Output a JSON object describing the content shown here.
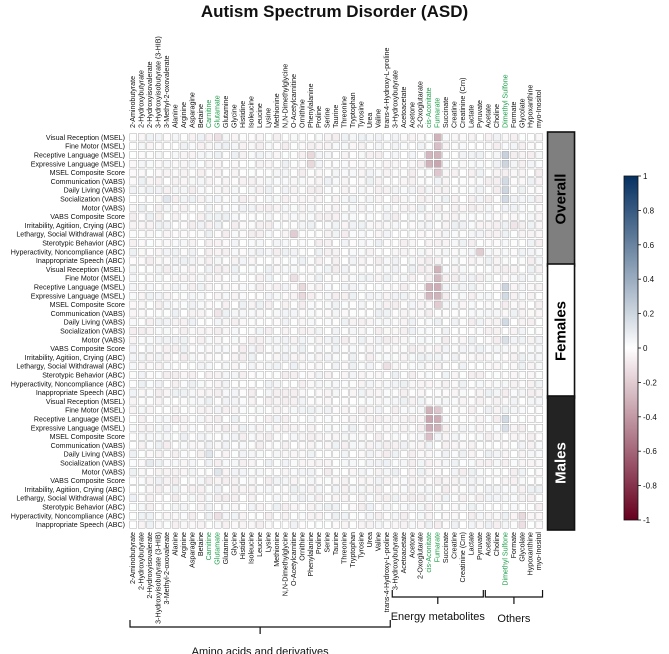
{
  "chart_data": {
    "type": "heatmap",
    "title": "Autism Spectrum Disorder (ASD)",
    "columns": [
      "2-Aminobutyrate",
      "2-Hydroxybutyrate",
      "2-Hydroxyisovalerate",
      "3-Hydroxyisobutyrate (3-HIB)",
      "3-Methyl-2-oxovalerate",
      "Alanine",
      "Arginine",
      "Asparagine",
      "Betaine",
      "Carnitine",
      "Glutamate",
      "Glutamine",
      "Glycine",
      "Histidine",
      "Isoleucine",
      "Leucine",
      "Lysine",
      "Methionine",
      "N,N-Dimethylglycine",
      "O-Acetylcarnitine",
      "Ornithine",
      "Phenylalanine",
      "Proline",
      "Serine",
      "Taurine",
      "Threonine",
      "Tryptophan",
      "Tyrosine",
      "Urea",
      "Valine",
      "trans-4-Hydroxy-L-proline",
      "3-Hydroxybutyrate",
      "Acetoacetate",
      "Acetone",
      "2-Oxoglutarate",
      "cis-Aconitate",
      "Fumarate",
      "Succinate",
      "Creatine",
      "Creatinine (Crn)",
      "Lactate",
      "Pyruvate",
      "Acetate",
      "Choline",
      "Dimethyl Sulfone",
      "Formate",
      "Glycolate",
      "Hypoxanthine",
      "myo-Inositol"
    ],
    "highlighted_columns": [
      "Carnitine",
      "Glutamate",
      "cis-Aconitate",
      "Fumarate",
      "Dimethyl Sulfone"
    ],
    "rows": [
      "Visual Reception (MSEL)",
      "Fine Motor (MSEL)",
      "Receptive Language (MSEL)",
      "Expressive Language (MSEL)",
      "MSEL Composite Score",
      "Communication (VABS)",
      "Daily Living (VABS)",
      "Socialization (VABS)",
      "Motor (VABS)",
      "VABS Composite Score",
      "Irritability, Agitiion, Crying (ABC)",
      "Lethargy, Social Withdrawal (ABC)",
      "Sterotypic Behavior (ABC)",
      "Hyperactivity, Noncompliance (ABC)",
      "Inappropriate Speech (ABC)"
    ],
    "panels": [
      {
        "name": "Overall",
        "fill": "#7f7f7f",
        "text": "#000000"
      },
      {
        "name": "Females",
        "fill": "#ffffff",
        "text": "#000000"
      },
      {
        "name": "Males",
        "fill": "#232323",
        "text": "#ffffff"
      }
    ],
    "groups": [
      {
        "label": "Amino acids and derivatives",
        "from": 0,
        "to": 30
      },
      {
        "label": "Energy metabolites",
        "from": 31,
        "to": 41
      },
      {
        "label": "Others",
        "from": 42,
        "to": 48
      }
    ],
    "colorbar": {
      "min": -1,
      "max": 1,
      "ticks": [
        "1",
        "0.8",
        "0.6",
        "0.4",
        "0.2",
        "0",
        "-0.2",
        "-0.4",
        "-0.6",
        "-0.8",
        "-1"
      ],
      "colors": {
        "neg": "#67001f",
        "mid": "#ffffff",
        "pos": "#053061"
      }
    },
    "value_range": [
      -1,
      1
    ],
    "strong_cells": {
      "note": "approximate correlation values per panel; unlisted cells ~0",
      "Overall": [
        [
          0,
          36,
          -0.3
        ],
        [
          1,
          36,
          -0.25
        ],
        [
          2,
          35,
          -0.28
        ],
        [
          2,
          36,
          -0.3
        ],
        [
          3,
          35,
          -0.3
        ],
        [
          3,
          36,
          -0.35
        ],
        [
          4,
          36,
          -0.22
        ],
        [
          2,
          44,
          0.22
        ],
        [
          3,
          44,
          0.2
        ],
        [
          5,
          44,
          0.18
        ],
        [
          6,
          44,
          0.2
        ],
        [
          7,
          44,
          0.18
        ],
        [
          11,
          19,
          -0.2
        ],
        [
          13,
          41,
          -0.2
        ],
        [
          2,
          21,
          -0.15
        ],
        [
          3,
          21,
          -0.15
        ],
        [
          0,
          10,
          -0.12
        ],
        [
          7,
          4,
          0.12
        ],
        [
          10,
          45,
          -0.1
        ]
      ],
      "Females": [
        [
          0,
          36,
          -0.3
        ],
        [
          1,
          36,
          -0.28
        ],
        [
          2,
          35,
          -0.3
        ],
        [
          2,
          36,
          -0.32
        ],
        [
          3,
          35,
          -0.28
        ],
        [
          3,
          36,
          -0.3
        ],
        [
          4,
          36,
          -0.2
        ],
        [
          2,
          44,
          0.2
        ],
        [
          3,
          44,
          0.18
        ],
        [
          6,
          44,
          0.18
        ],
        [
          8,
          44,
          0.15
        ],
        [
          3,
          20,
          -0.15
        ],
        [
          2,
          20,
          -0.15
        ],
        [
          1,
          19,
          -0.12
        ],
        [
          5,
          10,
          -0.1
        ],
        [
          11,
          30,
          -0.12
        ]
      ],
      "Males": [
        [
          1,
          35,
          -0.3
        ],
        [
          2,
          35,
          -0.35
        ],
        [
          2,
          36,
          -0.32
        ],
        [
          3,
          35,
          -0.32
        ],
        [
          3,
          36,
          -0.3
        ],
        [
          4,
          35,
          -0.25
        ],
        [
          1,
          36,
          -0.22
        ],
        [
          2,
          44,
          0.18
        ],
        [
          3,
          44,
          0.15
        ],
        [
          13,
          46,
          -0.15
        ],
        [
          14,
          46,
          -0.12
        ],
        [
          6,
          9,
          0.12
        ],
        [
          8,
          10,
          0.12
        ],
        [
          13,
          10,
          -0.12
        ],
        [
          7,
          2,
          0.1
        ]
      ]
    }
  }
}
